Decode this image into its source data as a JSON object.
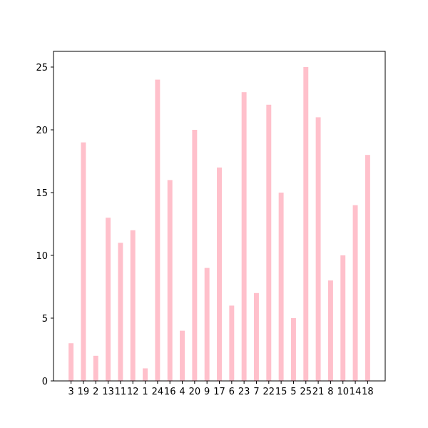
{
  "chart_data": {
    "type": "bar",
    "categories": [
      "3",
      "19",
      "2",
      "13",
      "11",
      "12",
      "1",
      "24",
      "16",
      "4",
      "20",
      "9",
      "17",
      "6",
      "23",
      "7",
      "22",
      "15",
      "5",
      "25",
      "21",
      "8",
      "10",
      "14",
      "18"
    ],
    "values": [
      3,
      19,
      2,
      13,
      11,
      12,
      1,
      24,
      16,
      4,
      20,
      9,
      17,
      6,
      23,
      7,
      22,
      15,
      5,
      25,
      21,
      8,
      10,
      14,
      18
    ],
    "color": "pink",
    "ylim": [
      0,
      26.25
    ],
    "yticks": [
      0,
      5,
      10,
      15,
      20,
      25
    ],
    "grid": false
  }
}
